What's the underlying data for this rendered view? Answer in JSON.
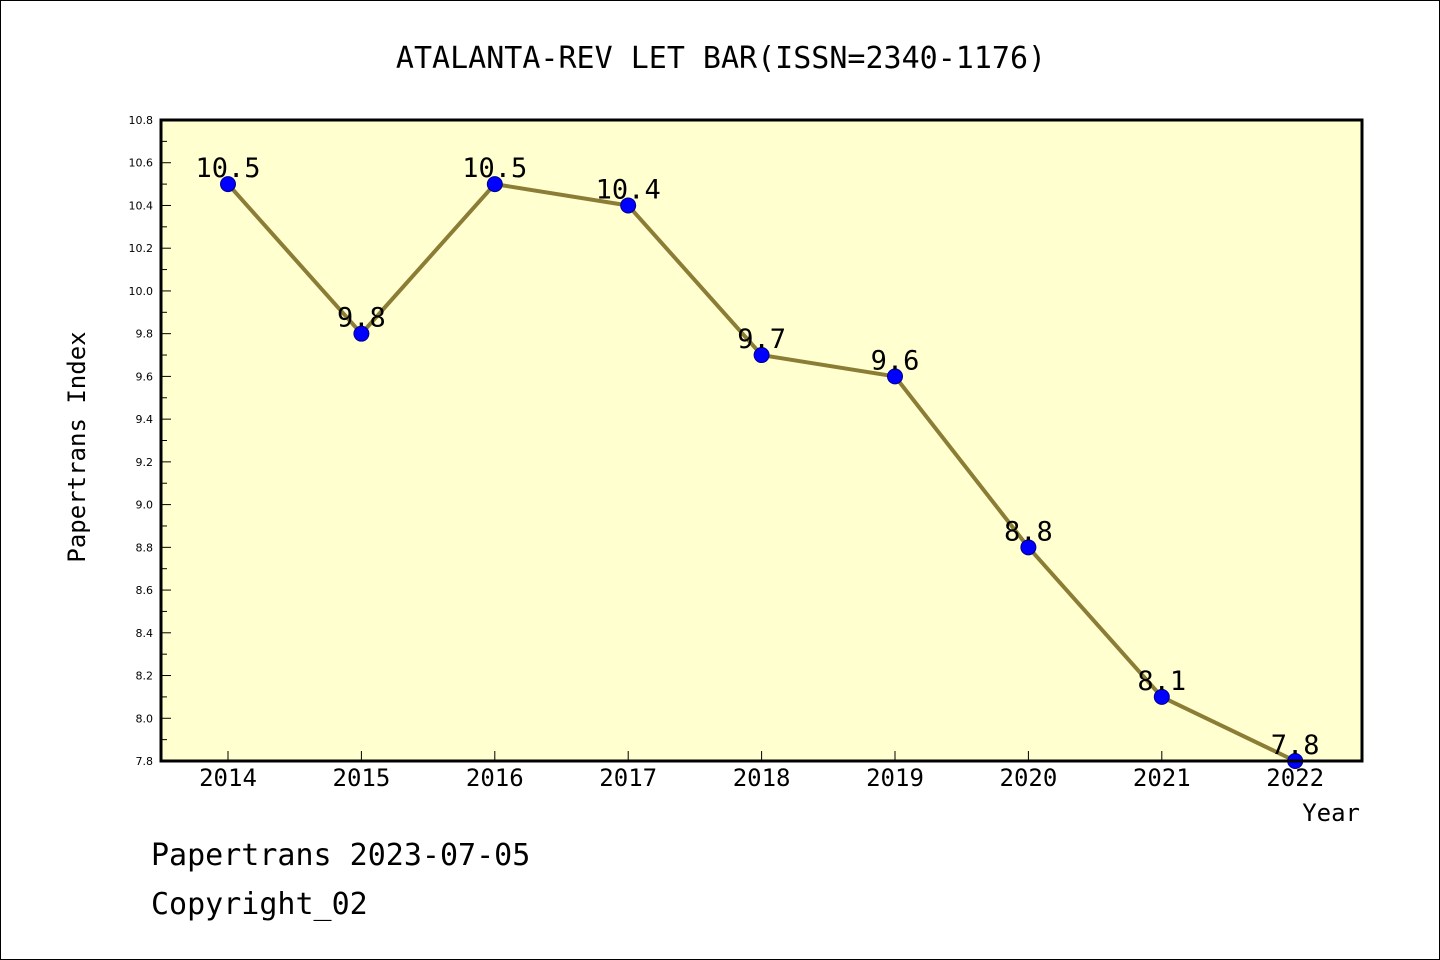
{
  "chart_data": {
    "type": "line",
    "title": "ATALANTA-REV LET BAR(ISSN=2340-1176)",
    "xlabel": "Year",
    "ylabel": "Papertrans Index",
    "categories": [
      "2014",
      "2015",
      "2016",
      "2017",
      "2018",
      "2019",
      "2020",
      "2021",
      "2022"
    ],
    "series": [
      {
        "values": [
          10.5,
          9.8,
          10.5,
          10.4,
          9.7,
          9.6,
          8.8,
          8.1,
          7.8
        ],
        "data_labels": [
          "10.5",
          "9.8",
          "10.5",
          "10.4",
          "9.7",
          "9.6",
          "8.8",
          "8.1",
          "7.8"
        ]
      }
    ],
    "ylim": [
      7.8,
      10.8
    ],
    "yticks": [
      "7.8",
      "8.0",
      "8.2",
      "8.4",
      "8.6",
      "8.8",
      "9.0",
      "9.2",
      "9.4",
      "9.6",
      "9.8",
      "10.0",
      "10.2",
      "10.4",
      "10.6",
      "10.8"
    ],
    "grid": false,
    "colors": {
      "plot_background": "#FFFFD0",
      "line": "#8B7D35",
      "marker": "#0000FF"
    }
  },
  "footer": {
    "line1": "Papertrans 2023-07-05",
    "line2": "Copyright_02"
  }
}
